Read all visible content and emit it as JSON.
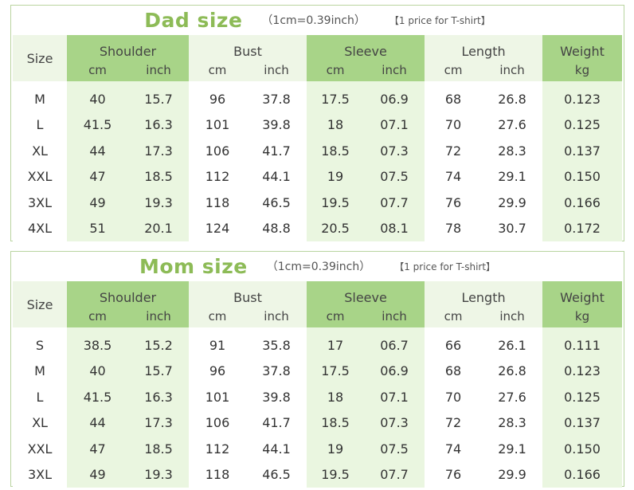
{
  "dad": {
    "title": "Dad size",
    "conversion": "（1cm=0.39inch）",
    "price_note": "【1 price for T-shirt】",
    "headers": {
      "size": "Size",
      "shoulder": "Shoulder",
      "bust": "Bust",
      "sleeve": "Sleeve",
      "length": "Length",
      "weight": "Weight",
      "cm": "cm",
      "inch": "inch",
      "kg": "kg"
    },
    "rows": [
      [
        "M",
        "40",
        "15.7",
        "96",
        "37.8",
        "17.5",
        "06.9",
        "68",
        "26.8",
        "0.123"
      ],
      [
        "L",
        "41.5",
        "16.3",
        "101",
        "39.8",
        "18",
        "07.1",
        "70",
        "27.6",
        "0.125"
      ],
      [
        "XL",
        "44",
        "17.3",
        "106",
        "41.7",
        "18.5",
        "07.3",
        "72",
        "28.3",
        "0.137"
      ],
      [
        "XXL",
        "47",
        "18.5",
        "112",
        "44.1",
        "19",
        "07.5",
        "74",
        "29.1",
        "0.150"
      ],
      [
        "3XL",
        "49",
        "19.3",
        "118",
        "46.5",
        "19.5",
        "07.7",
        "76",
        "29.9",
        "0.166"
      ],
      [
        "4XL",
        "51",
        "20.1",
        "124",
        "48.8",
        "20.5",
        "08.1",
        "78",
        "30.7",
        "0.172"
      ]
    ]
  },
  "mom": {
    "title": "Mom size",
    "conversion": "（1cm=0.39inch）",
    "price_note": "【1 price for T-shirt】",
    "headers": {
      "size": "Size",
      "shoulder": "Shoulder",
      "bust": "Bust",
      "sleeve": "Sleeve",
      "length": "Length",
      "weight": "Weight",
      "cm": "cm",
      "inch": "inch",
      "kg": "kg"
    },
    "rows": [
      [
        "S",
        "38.5",
        "15.2",
        "91",
        "35.8",
        "17",
        "06.7",
        "66",
        "26.1",
        "0.111"
      ],
      [
        "M",
        "40",
        "15.7",
        "96",
        "37.8",
        "17.5",
        "06.9",
        "68",
        "26.8",
        "0.123"
      ],
      [
        "L",
        "41.5",
        "16.3",
        "101",
        "39.8",
        "18",
        "07.1",
        "70",
        "27.6",
        "0.125"
      ],
      [
        "XL",
        "44",
        "17.3",
        "106",
        "41.7",
        "18.5",
        "07.3",
        "72",
        "28.3",
        "0.137"
      ],
      [
        "XXL",
        "47",
        "18.5",
        "112",
        "44.1",
        "19",
        "07.5",
        "74",
        "29.1",
        "0.150"
      ],
      [
        "3XL",
        "49",
        "19.3",
        "118",
        "46.5",
        "19.5",
        "07.7",
        "76",
        "29.9",
        "0.166"
      ]
    ]
  },
  "colors": {
    "title_green": "#8dbb57",
    "header_dark": "#a8d488",
    "header_light": "#eef6e6",
    "cell_dark": "#eaf6e0",
    "border": "#b9d4a0"
  }
}
